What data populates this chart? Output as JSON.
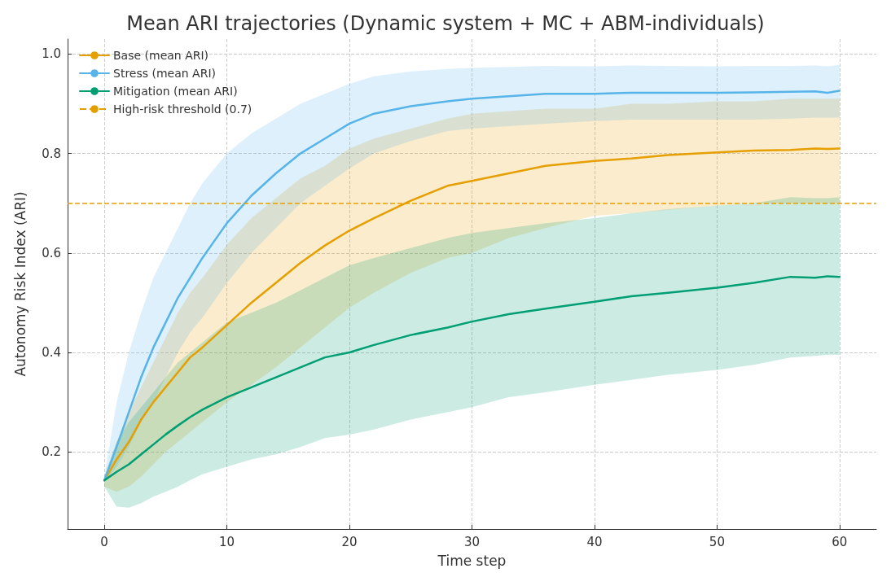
{
  "chart_data": {
    "type": "line",
    "title": "Mean ARI trajectories (Dynamic system + MC + ABM-individuals)",
    "xlabel": "Time step",
    "ylabel": "Autonomy Risk Index (ARI)",
    "x": [
      0,
      1,
      2,
      3,
      4,
      5,
      6,
      7,
      8,
      10,
      12,
      14,
      16,
      18,
      20,
      22,
      25,
      28,
      30,
      33,
      36,
      40,
      43,
      46,
      50,
      53,
      56,
      58,
      59,
      60
    ],
    "series": [
      {
        "name": "Base (mean ARI)",
        "color": "#e69f00",
        "values": [
          0.143,
          0.185,
          0.22,
          0.265,
          0.3,
          0.33,
          0.36,
          0.39,
          0.41,
          0.455,
          0.5,
          0.54,
          0.58,
          0.615,
          0.645,
          0.67,
          0.705,
          0.735,
          0.745,
          0.76,
          0.775,
          0.785,
          0.79,
          0.797,
          0.802,
          0.806,
          0.807,
          0.81,
          0.809,
          0.81
        ],
        "lower": [
          0.13,
          0.12,
          0.13,
          0.15,
          0.175,
          0.2,
          0.22,
          0.24,
          0.26,
          0.3,
          0.335,
          0.37,
          0.41,
          0.45,
          0.49,
          0.52,
          0.56,
          0.59,
          0.6,
          0.63,
          0.65,
          0.675,
          0.68,
          0.687,
          0.695,
          0.7,
          0.7,
          0.7,
          0.7,
          0.7
        ],
        "upper": [
          0.15,
          0.22,
          0.28,
          0.33,
          0.38,
          0.43,
          0.48,
          0.52,
          0.55,
          0.617,
          0.67,
          0.71,
          0.75,
          0.775,
          0.81,
          0.83,
          0.85,
          0.87,
          0.88,
          0.885,
          0.89,
          0.89,
          0.9,
          0.9,
          0.905,
          0.905,
          0.91,
          0.91,
          0.91,
          0.91
        ]
      },
      {
        "name": "Stress (mean ARI)",
        "color": "#56b4e9",
        "values": [
          0.143,
          0.21,
          0.28,
          0.35,
          0.41,
          0.46,
          0.51,
          0.55,
          0.59,
          0.66,
          0.715,
          0.76,
          0.8,
          0.83,
          0.86,
          0.88,
          0.895,
          0.905,
          0.91,
          0.915,
          0.92,
          0.92,
          0.922,
          0.922,
          0.922,
          0.923,
          0.924,
          0.925,
          0.922,
          0.926
        ],
        "lower": [
          0.14,
          0.17,
          0.21,
          0.26,
          0.3,
          0.35,
          0.4,
          0.44,
          0.47,
          0.54,
          0.6,
          0.65,
          0.7,
          0.735,
          0.77,
          0.8,
          0.825,
          0.845,
          0.85,
          0.855,
          0.86,
          0.865,
          0.868,
          0.868,
          0.868,
          0.868,
          0.87,
          0.872,
          0.872,
          0.872
        ],
        "upper": [
          0.15,
          0.3,
          0.4,
          0.48,
          0.55,
          0.6,
          0.65,
          0.7,
          0.74,
          0.8,
          0.84,
          0.87,
          0.9,
          0.92,
          0.94,
          0.955,
          0.965,
          0.97,
          0.972,
          0.974,
          0.976,
          0.975,
          0.977,
          0.976,
          0.975,
          0.976,
          0.976,
          0.977,
          0.975,
          0.978
        ]
      },
      {
        "name": "Mitigation (mean ARI)",
        "color": "#009e73",
        "values": [
          0.143,
          0.16,
          0.175,
          0.195,
          0.215,
          0.235,
          0.253,
          0.27,
          0.285,
          0.31,
          0.33,
          0.35,
          0.37,
          0.39,
          0.4,
          0.415,
          0.435,
          0.45,
          0.462,
          0.477,
          0.488,
          0.502,
          0.513,
          0.52,
          0.53,
          0.54,
          0.552,
          0.55,
          0.553,
          0.552
        ],
        "lower": [
          0.13,
          0.09,
          0.088,
          0.097,
          0.11,
          0.12,
          0.13,
          0.143,
          0.155,
          0.17,
          0.185,
          0.195,
          0.21,
          0.228,
          0.235,
          0.245,
          0.265,
          0.28,
          0.29,
          0.31,
          0.32,
          0.335,
          0.345,
          0.355,
          0.365,
          0.375,
          0.39,
          0.393,
          0.395,
          0.395
        ],
        "upper": [
          0.15,
          0.22,
          0.26,
          0.29,
          0.32,
          0.35,
          0.38,
          0.4,
          0.42,
          0.46,
          0.48,
          0.5,
          0.525,
          0.55,
          0.575,
          0.59,
          0.61,
          0.63,
          0.64,
          0.65,
          0.66,
          0.67,
          0.68,
          0.688,
          0.695,
          0.7,
          0.712,
          0.71,
          0.71,
          0.712
        ]
      }
    ],
    "ref_lines": [
      {
        "axis": "y",
        "value": 0.7,
        "label": "High-risk threshold (0.7)",
        "color": "#e69f00",
        "line_style": "dashed"
      }
    ],
    "xlim": [
      -3,
      63
    ],
    "xticks": [
      0,
      10,
      20,
      30,
      40,
      50,
      60
    ],
    "ylim": [
      0.045,
      1.03
    ],
    "yticks": [
      0.2,
      0.4,
      0.6,
      0.8,
      {
        "value": 1,
        "label": "1.0"
      }
    ],
    "grid": true,
    "legend": "top left",
    "marker": "none",
    "line_style": "solid"
  }
}
